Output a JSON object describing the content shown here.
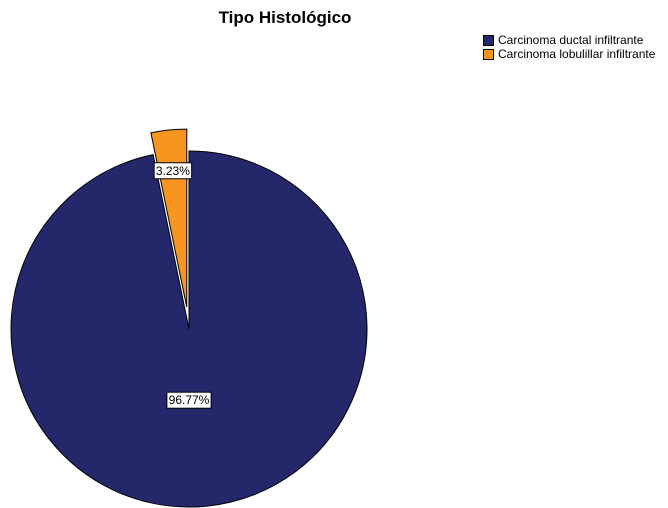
{
  "chart_data": {
    "type": "pie",
    "title": "Tipo Histológico",
    "slices": [
      {
        "name": "Carcinoma ductal infiltrante",
        "value": 96.77,
        "label": "96.77%",
        "color": "#25276B",
        "exploded": false
      },
      {
        "name": "Carcinoma lobulillar infiltrante",
        "value": 3.23,
        "label": "3.23%",
        "color": "#F7951F",
        "exploded": true
      }
    ],
    "legend_position": "top-right"
  }
}
